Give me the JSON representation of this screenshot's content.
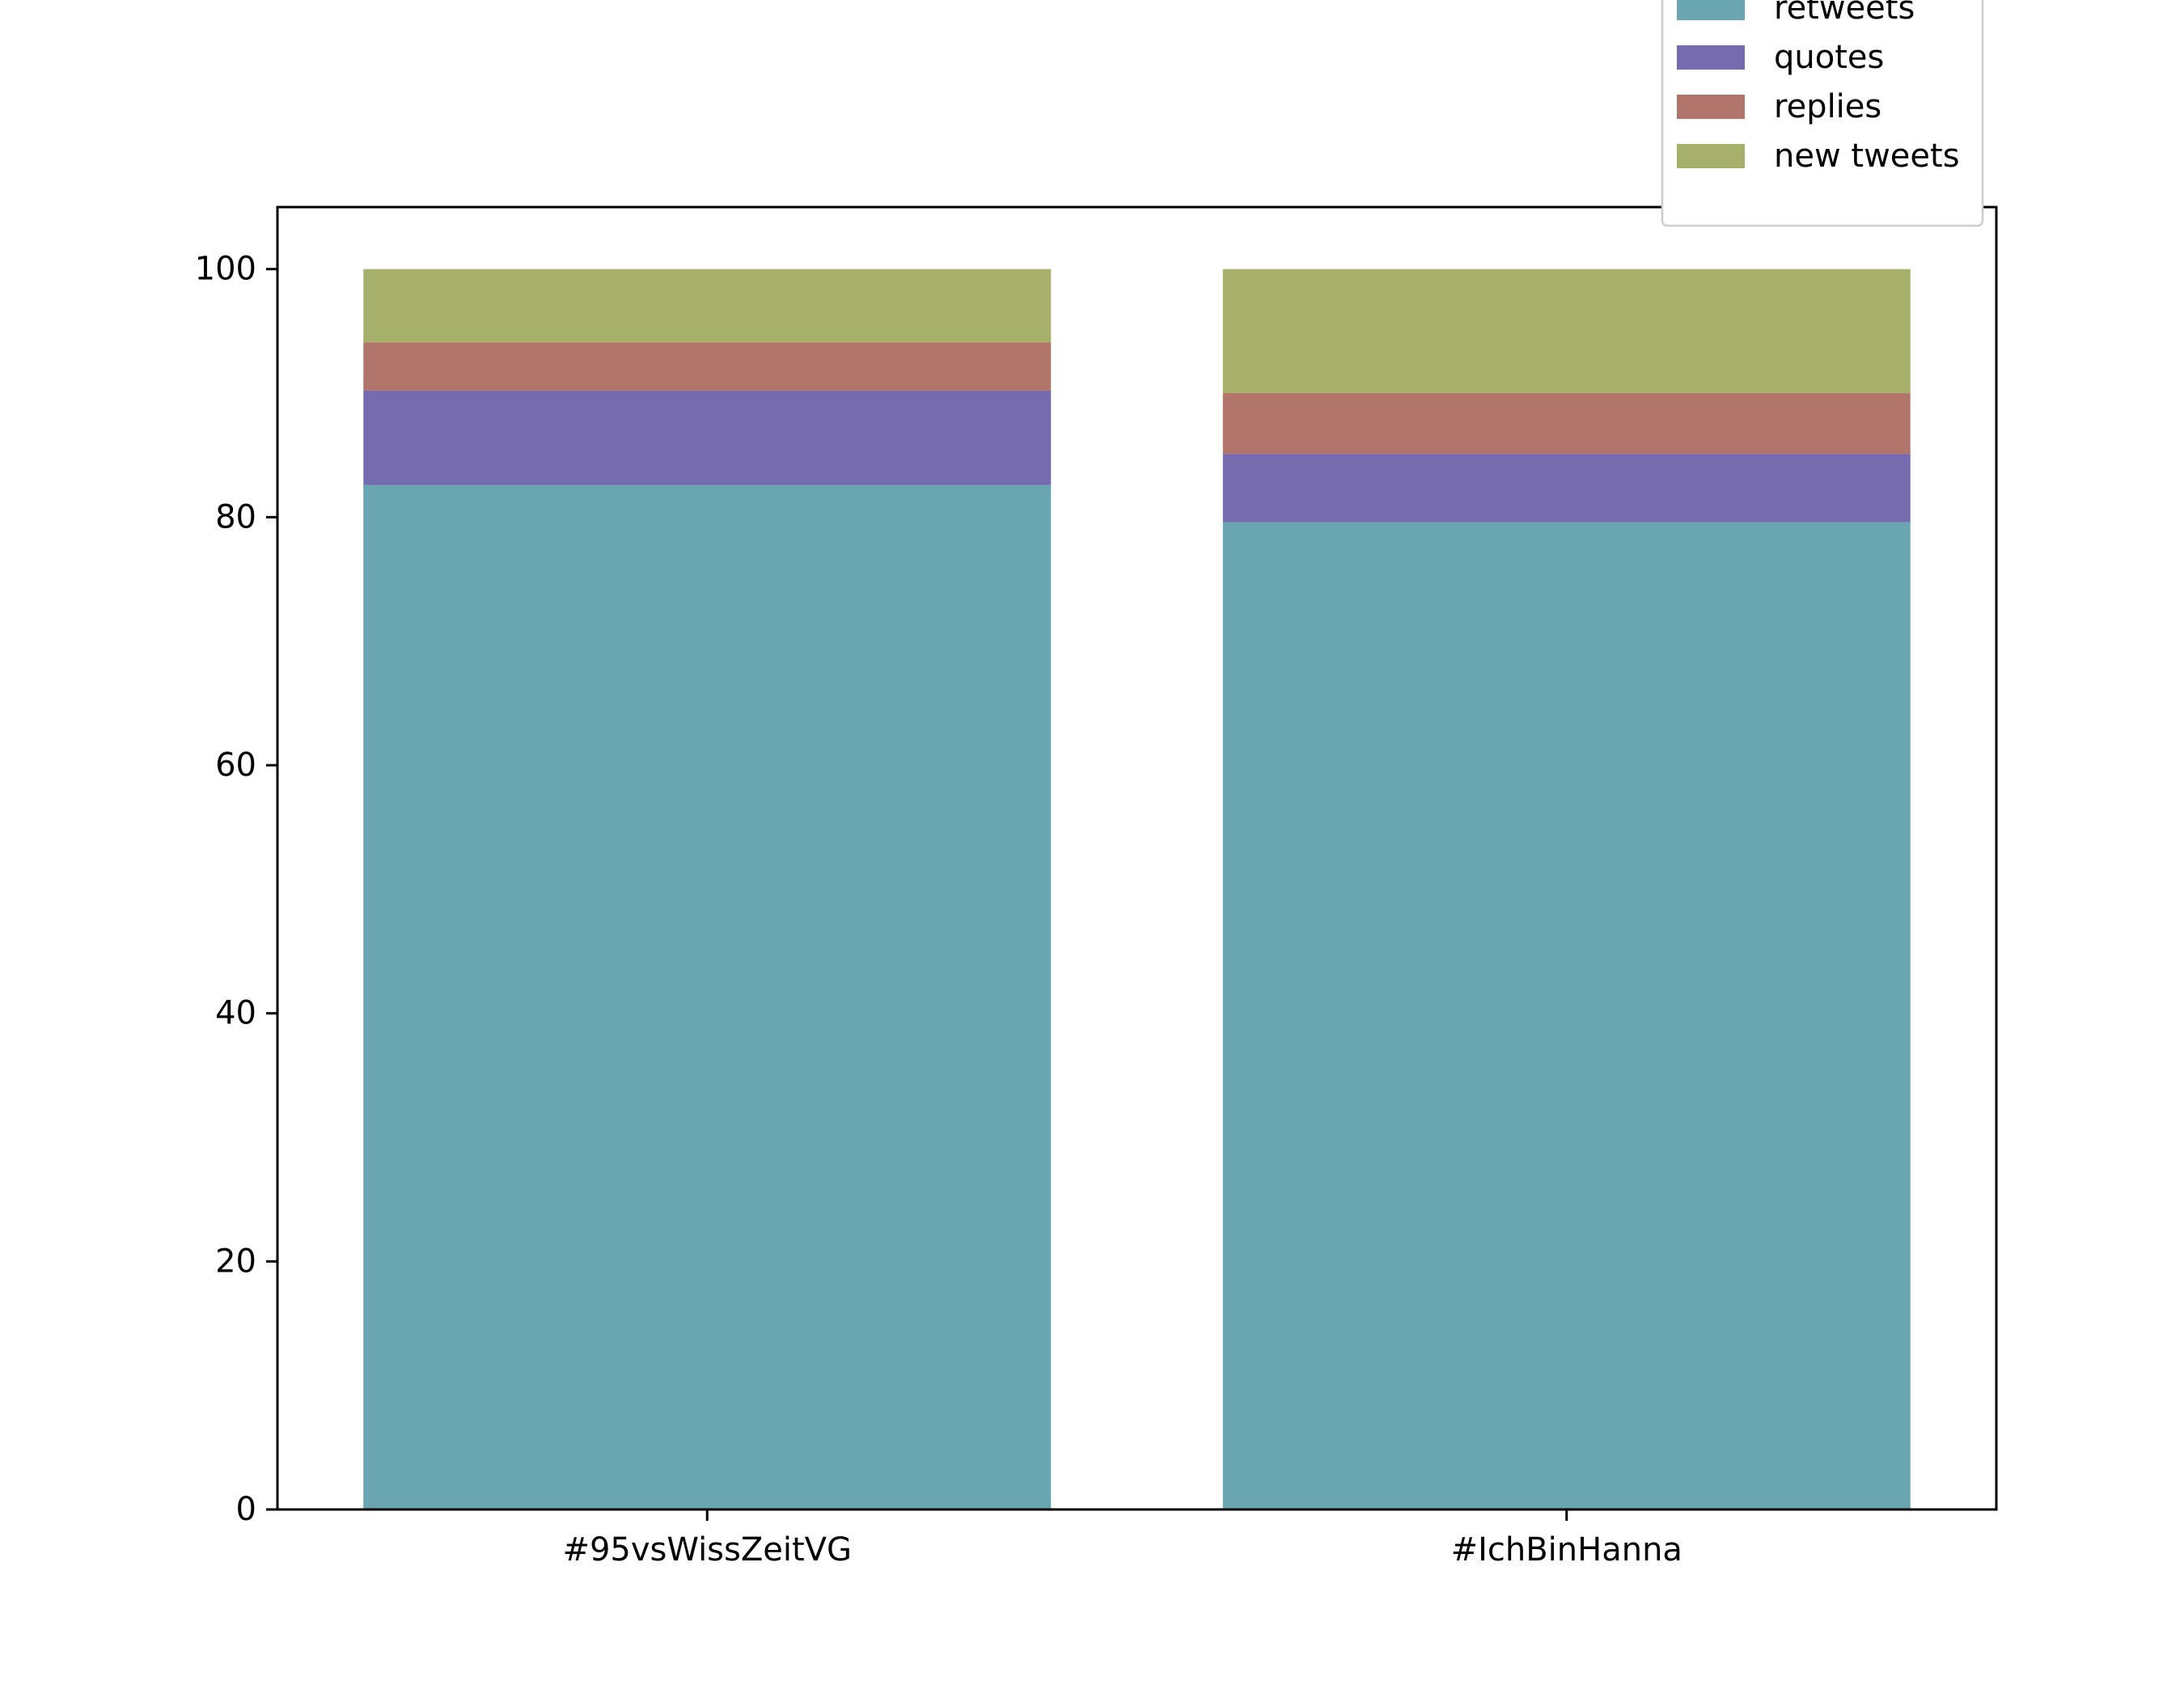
{
  "chart_data": {
    "type": "bar",
    "stacked": true,
    "title": "",
    "xlabel": "",
    "ylabel": "",
    "categories": [
      "#95vsWissZeitVG",
      "#IchBinHanna"
    ],
    "series": [
      {
        "name": "retweets",
        "color": "#6aa6b1",
        "values": [
          82.6,
          79.6
        ]
      },
      {
        "name": "quotes",
        "color": "#776bb0",
        "values": [
          7.6,
          5.5
        ]
      },
      {
        "name": "replies",
        "color": "#b2756b",
        "values": [
          3.9,
          4.9
        ]
      },
      {
        "name": "new tweets",
        "color": "#a7b06b",
        "values": [
          5.9,
          10.0
        ]
      }
    ],
    "ylim": [
      0,
      105
    ],
    "yticks": [
      0,
      20,
      40,
      60,
      80,
      100
    ],
    "grid": false,
    "legend_position": "top-right"
  }
}
